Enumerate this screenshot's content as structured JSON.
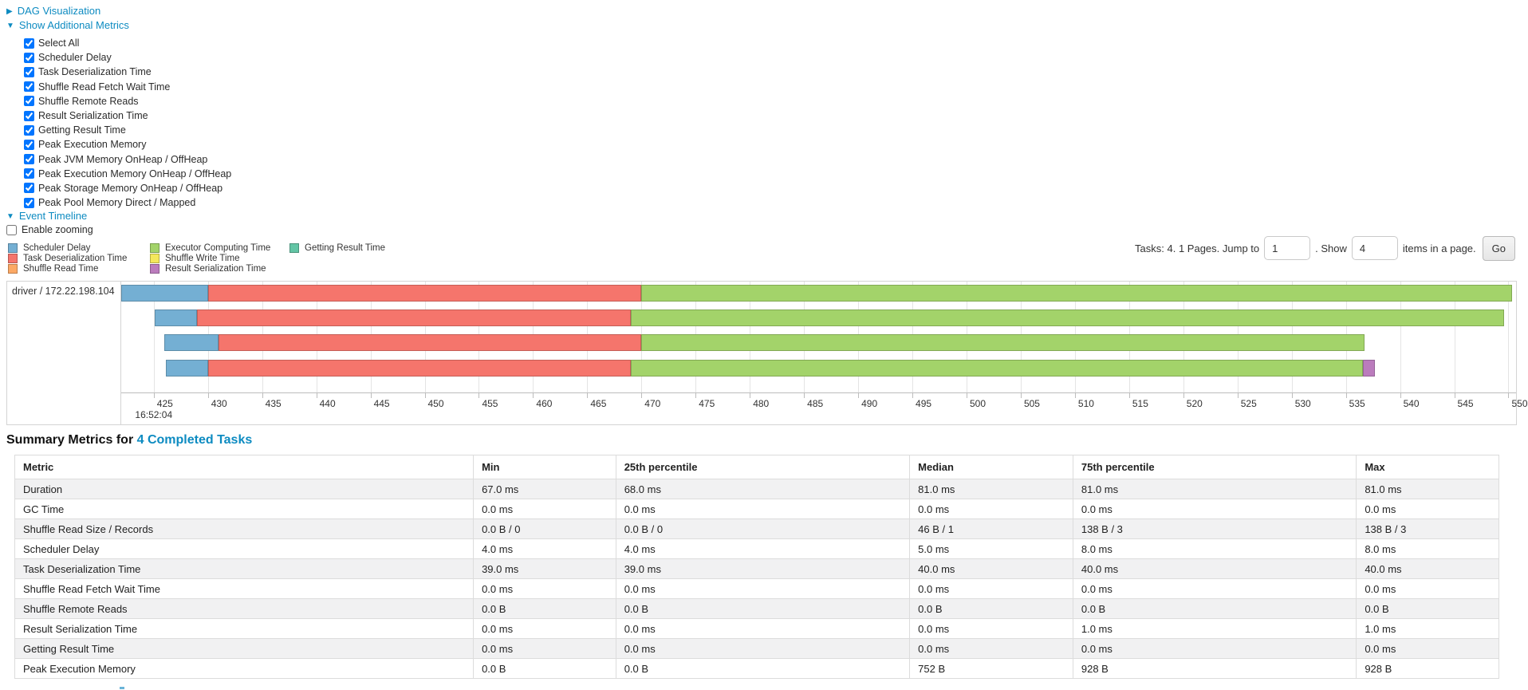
{
  "colors": {
    "link": "#0d8bc1",
    "scheduler_delay": "#74AFD3",
    "task_deserialization": "#F5756C",
    "shuffle_read": "#FCA965",
    "executor_computing": "#A3D36A",
    "shuffle_write": "#F4E85C",
    "result_serialization": "#BB7CBD",
    "getting_result": "#63C5A5"
  },
  "accordion": {
    "dag_label": "DAG Visualization",
    "metrics_label": "Show Additional Metrics",
    "timeline_label": "Event Timeline",
    "collapsed_arrow": "▶",
    "expanded_arrow": "▼"
  },
  "metric_checkboxes": [
    {
      "label": "Select All",
      "checked": true
    },
    {
      "label": "Scheduler Delay",
      "checked": true
    },
    {
      "label": "Task Deserialization Time",
      "checked": true
    },
    {
      "label": "Shuffle Read Fetch Wait Time",
      "checked": true
    },
    {
      "label": "Shuffle Remote Reads",
      "checked": true
    },
    {
      "label": "Result Serialization Time",
      "checked": true
    },
    {
      "label": "Getting Result Time",
      "checked": true
    },
    {
      "label": "Peak Execution Memory",
      "checked": true
    },
    {
      "label": "Peak JVM Memory OnHeap / OffHeap",
      "checked": true
    },
    {
      "label": "Peak Execution Memory OnHeap / OffHeap",
      "checked": true
    },
    {
      "label": "Peak Storage Memory OnHeap / OffHeap",
      "checked": true
    },
    {
      "label": "Peak Pool Memory Direct / Mapped",
      "checked": true
    }
  ],
  "enable_zooming": {
    "label": "Enable zooming",
    "checked": false
  },
  "legend": [
    {
      "label": "Scheduler Delay",
      "color_key": "scheduler_delay"
    },
    {
      "label": "Task Deserialization Time",
      "color_key": "task_deserialization"
    },
    {
      "label": "Shuffle Read Time",
      "color_key": "shuffle_read"
    },
    {
      "label": "Executor Computing Time",
      "color_key": "executor_computing"
    },
    {
      "label": "Shuffle Write Time",
      "color_key": "shuffle_write"
    },
    {
      "label": "Result Serialization Time",
      "color_key": "result_serialization"
    },
    {
      "label": "Getting Result Time",
      "color_key": "getting_result"
    }
  ],
  "pagination": {
    "tasks_text": "Tasks: 4. 1 Pages. Jump to",
    "jump_value": "1",
    "show_text": ". Show",
    "show_value": "4",
    "items_text": "items in a page.",
    "go_label": "Go"
  },
  "chart_data": {
    "type": "timeline",
    "group_label": "driver / 172.22.198.104",
    "x_domain": [
      422,
      550.7
    ],
    "x_ticks": [
      425,
      430,
      435,
      440,
      445,
      450,
      455,
      460,
      465,
      470,
      475,
      480,
      485,
      490,
      495,
      500,
      505,
      510,
      515,
      520,
      525,
      530,
      535,
      540,
      545,
      550
    ],
    "x_time_label": "16:52:04",
    "x_time_label_tick": 425,
    "row_tops": [
      4,
      35,
      66,
      98
    ],
    "tasks": [
      {
        "start": 422.0,
        "segments": [
          {
            "type": "scheduler_delay",
            "end": 430.0
          },
          {
            "type": "task_deserialization",
            "end": 470.0
          },
          {
            "type": "executor_computing",
            "end": 550.3
          }
        ]
      },
      {
        "start": 425.1,
        "segments": [
          {
            "type": "scheduler_delay",
            "end": 429.0
          },
          {
            "type": "task_deserialization",
            "end": 469.0
          },
          {
            "type": "executor_computing",
            "end": 549.6
          }
        ]
      },
      {
        "start": 426.0,
        "segments": [
          {
            "type": "scheduler_delay",
            "end": 431.0
          },
          {
            "type": "task_deserialization",
            "end": 470.0
          },
          {
            "type": "executor_computing",
            "end": 536.7
          }
        ]
      },
      {
        "start": 426.1,
        "segments": [
          {
            "type": "scheduler_delay",
            "end": 430.0
          },
          {
            "type": "task_deserialization",
            "end": 469.0
          },
          {
            "type": "executor_computing",
            "end": 536.6
          },
          {
            "type": "result_serialization",
            "end": 537.7
          }
        ]
      }
    ]
  },
  "summary": {
    "title_prefix": "Summary Metrics for ",
    "title_link": "4 Completed Tasks",
    "table": {
      "headers": [
        "Metric",
        "Min",
        "25th percentile",
        "Median",
        "75th percentile",
        "Max"
      ],
      "col_widths_pct": [
        30.9,
        9.6,
        19.8,
        11.0,
        19.1,
        9.6
      ],
      "rows": [
        [
          "Duration",
          "67.0 ms",
          "68.0 ms",
          "81.0 ms",
          "81.0 ms",
          "81.0 ms"
        ],
        [
          "GC Time",
          "0.0 ms",
          "0.0 ms",
          "0.0 ms",
          "0.0 ms",
          "0.0 ms"
        ],
        [
          "Shuffle Read Size / Records",
          "0.0 B / 0",
          "0.0 B / 0",
          "46 B / 1",
          "138 B / 3",
          "138 B / 3"
        ],
        [
          "Scheduler Delay",
          "4.0 ms",
          "4.0 ms",
          "5.0 ms",
          "8.0 ms",
          "8.0 ms"
        ],
        [
          "Task Deserialization Time",
          "39.0 ms",
          "39.0 ms",
          "40.0 ms",
          "40.0 ms",
          "40.0 ms"
        ],
        [
          "Shuffle Read Fetch Wait Time",
          "0.0 ms",
          "0.0 ms",
          "0.0 ms",
          "0.0 ms",
          "0.0 ms"
        ],
        [
          "Shuffle Remote Reads",
          "0.0 B",
          "0.0 B",
          "0.0 B",
          "0.0 B",
          "0.0 B"
        ],
        [
          "Result Serialization Time",
          "0.0 ms",
          "0.0 ms",
          "0.0 ms",
          "1.0 ms",
          "1.0 ms"
        ],
        [
          "Getting Result Time",
          "0.0 ms",
          "0.0 ms",
          "0.0 ms",
          "0.0 ms",
          "0.0 ms"
        ],
        [
          "Peak Execution Memory",
          "0.0 B",
          "0.0 B",
          "752 B",
          "928 B",
          "928 B"
        ]
      ]
    }
  }
}
